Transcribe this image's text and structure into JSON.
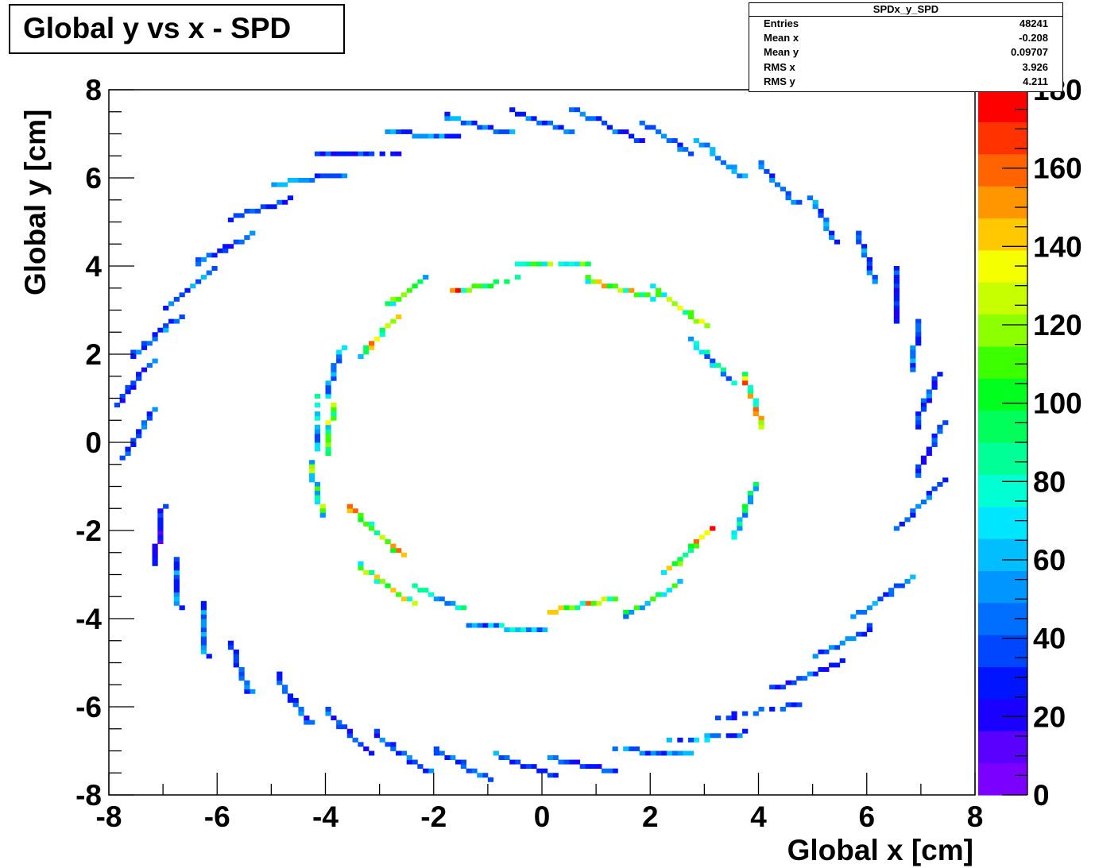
{
  "chart_data": {
    "type": "heatmap",
    "title": "Global y vs x - SPD",
    "xlabel": "Global x [cm]",
    "ylabel": "Global y [cm]",
    "xlim": [
      -8,
      8
    ],
    "ylim": [
      -8,
      8
    ],
    "x_ticks": [
      "-8",
      "-6",
      "-4",
      "-2",
      "0",
      "2",
      "4",
      "6",
      "8"
    ],
    "y_ticks": [
      "-8",
      "-6",
      "-4",
      "-2",
      "0",
      "2",
      "4",
      "6",
      "8"
    ],
    "z_range": [
      0,
      180
    ],
    "z_ticks": [
      "0",
      "20",
      "40",
      "60",
      "80",
      "100",
      "120",
      "140",
      "160",
      "180"
    ],
    "palette": [
      "#7b00ff",
      "#5a00ff",
      "#1a00ff",
      "#0014ff",
      "#0046ff",
      "#006eff",
      "#0096ff",
      "#00beff",
      "#00e6ff",
      "#00ffd2",
      "#00ff96",
      "#00ff5a",
      "#00ff1e",
      "#3cff00",
      "#8cff00",
      "#c8ff00",
      "#f5ff00",
      "#ffc800",
      "#ff9600",
      "#ff6400",
      "#ff3200",
      "#ff0000"
    ],
    "stats": {
      "name": "SPDx_y_SPD",
      "entries": {
        "label": "Entries",
        "value": "48241"
      },
      "mean_x": {
        "label": "Mean x",
        "value": "-0.208"
      },
      "mean_y": {
        "label": "Mean y",
        "value": "0.09707"
      },
      "rms_x": {
        "label": "RMS x",
        "value": "3.926"
      },
      "rms_y": {
        "label": "RMS y",
        "value": "4.211"
      }
    },
    "segments": [
      {
        "layer": "outer",
        "from": [
          -7.75,
          -0.4
        ],
        "to": [
          -7.2,
          0.7
        ],
        "z": 40
      },
      {
        "layer": "outer",
        "from": [
          -7.9,
          0.8
        ],
        "to": [
          -7.2,
          1.85
        ],
        "z": 35
      },
      {
        "layer": "outer",
        "from": [
          -7.6,
          1.95
        ],
        "to": [
          -6.7,
          2.85
        ],
        "z": 40
      },
      {
        "layer": "outer",
        "from": [
          -7.0,
          3.0
        ],
        "to": [
          -6.1,
          3.9
        ],
        "z": 45
      },
      {
        "layer": "outer",
        "from": [
          -6.4,
          4.05
        ],
        "to": [
          -5.4,
          4.7
        ],
        "z": 40
      },
      {
        "layer": "outer",
        "from": [
          -5.8,
          5.05
        ],
        "to": [
          -4.7,
          5.5
        ],
        "z": 35
      },
      {
        "layer": "outer",
        "from": [
          -5.0,
          5.85
        ],
        "to": [
          -3.7,
          6.1
        ],
        "z": 45
      },
      {
        "layer": "outer",
        "from": [
          -4.2,
          6.55
        ],
        "to": [
          -2.7,
          6.6
        ],
        "z": 30
      },
      {
        "layer": "outer",
        "from": [
          -2.9,
          7.05
        ],
        "to": [
          -1.6,
          6.9
        ],
        "z": 45
      },
      {
        "layer": "outer",
        "from": [
          -1.8,
          7.4
        ],
        "to": [
          -0.6,
          7.0
        ],
        "z": 50
      },
      {
        "layer": "outer",
        "from": [
          -0.6,
          7.55
        ],
        "to": [
          0.6,
          7.0
        ],
        "z": 45
      },
      {
        "layer": "outer",
        "from": [
          0.6,
          7.55
        ],
        "to": [
          1.8,
          6.85
        ],
        "z": 40
      },
      {
        "layer": "outer",
        "from": [
          1.9,
          7.25
        ],
        "to": [
          2.8,
          6.5
        ],
        "z": 40
      },
      {
        "layer": "outer",
        "from": [
          2.9,
          6.85
        ],
        "to": [
          3.7,
          6.0
        ],
        "z": 45
      },
      {
        "layer": "outer",
        "from": [
          4.0,
          6.35
        ],
        "to": [
          4.7,
          5.4
        ],
        "z": 40
      },
      {
        "layer": "outer",
        "from": [
          4.95,
          5.6
        ],
        "to": [
          5.45,
          4.5
        ],
        "z": 45
      },
      {
        "layer": "outer",
        "from": [
          5.85,
          4.75
        ],
        "to": [
          6.15,
          3.6
        ],
        "z": 45
      },
      {
        "layer": "outer",
        "from": [
          6.5,
          3.95
        ],
        "to": [
          6.6,
          2.7
        ],
        "z": 30
      },
      {
        "layer": "outer",
        "from": [
          6.95,
          2.7
        ],
        "to": [
          6.85,
          1.6
        ],
        "z": 45
      },
      {
        "layer": "outer",
        "from": [
          7.3,
          1.55
        ],
        "to": [
          6.9,
          0.35
        ],
        "z": 40
      },
      {
        "layer": "outer",
        "from": [
          7.4,
          0.4
        ],
        "to": [
          6.9,
          -0.75
        ],
        "z": 30
      },
      {
        "layer": "outer",
        "from": [
          7.4,
          -0.85
        ],
        "to": [
          6.6,
          -1.95
        ],
        "z": 40
      },
      {
        "layer": "outer",
        "from": [
          6.8,
          -3.1
        ],
        "to": [
          5.8,
          -3.95
        ],
        "z": 45
      },
      {
        "layer": "outer",
        "from": [
          6.1,
          -4.2
        ],
        "to": [
          5.1,
          -4.85
        ],
        "z": 40
      },
      {
        "layer": "outer",
        "from": [
          5.5,
          -5.0
        ],
        "to": [
          4.3,
          -5.6
        ],
        "z": 35
      },
      {
        "layer": "outer",
        "from": [
          4.7,
          -5.95
        ],
        "to": [
          3.3,
          -6.25
        ],
        "z": 40
      },
      {
        "layer": "outer",
        "from": [
          3.8,
          -6.6
        ],
        "to": [
          2.4,
          -6.8
        ],
        "z": 50
      },
      {
        "layer": "outer",
        "from": [
          2.7,
          -7.1
        ],
        "to": [
          1.3,
          -6.95
        ],
        "z": 45
      },
      {
        "layer": "outer",
        "from": [
          1.4,
          -7.5
        ],
        "to": [
          0.2,
          -7.15
        ],
        "z": 40
      },
      {
        "layer": "outer",
        "from": [
          0.3,
          -7.6
        ],
        "to": [
          -0.9,
          -7.05
        ],
        "z": 45
      },
      {
        "layer": "outer",
        "from": [
          -1.0,
          -7.65
        ],
        "to": [
          -2.0,
          -6.95
        ],
        "z": 40
      },
      {
        "layer": "outer",
        "from": [
          -2.1,
          -7.5
        ],
        "to": [
          -3.1,
          -6.6
        ],
        "z": 40
      },
      {
        "layer": "outer",
        "from": [
          -3.2,
          -7.05
        ],
        "to": [
          -4.0,
          -6.1
        ],
        "z": 40
      },
      {
        "layer": "outer",
        "from": [
          -4.3,
          -6.4
        ],
        "to": [
          -4.9,
          -5.3
        ],
        "z": 35
      },
      {
        "layer": "outer",
        "from": [
          -5.4,
          -5.7
        ],
        "to": [
          -5.75,
          -4.55
        ],
        "z": 40
      },
      {
        "layer": "outer",
        "from": [
          -6.2,
          -4.85
        ],
        "to": [
          -6.3,
          -3.65
        ],
        "z": 45
      },
      {
        "layer": "outer",
        "from": [
          -6.7,
          -3.8
        ],
        "to": [
          -6.75,
          -2.7
        ],
        "z": 45
      },
      {
        "layer": "outer",
        "from": [
          -7.15,
          -2.75
        ],
        "to": [
          -7.0,
          -1.5
        ],
        "z": 25
      },
      {
        "layer": "inner",
        "from": [
          -4.2,
          -0.2
        ],
        "to": [
          -4.15,
          1.0
        ],
        "z": 60
      },
      {
        "layer": "inner",
        "from": [
          -4.0,
          1.05
        ],
        "to": [
          -3.7,
          2.1
        ],
        "z": 50
      },
      {
        "layer": "inner",
        "from": [
          -3.35,
          1.95
        ],
        "to": [
          -2.7,
          2.85
        ],
        "z": 110
      },
      {
        "layer": "inner",
        "from": [
          -2.85,
          3.1
        ],
        "to": [
          -2.15,
          3.75
        ],
        "z": 90
      },
      {
        "layer": "inner",
        "from": [
          -1.7,
          3.4
        ],
        "to": [
          -0.4,
          3.75
        ],
        "z": 120
      },
      {
        "layer": "inner",
        "from": [
          -0.5,
          4.05
        ],
        "to": [
          0.8,
          4.1
        ],
        "z": 110
      },
      {
        "layer": "inner",
        "from": [
          0.8,
          3.7
        ],
        "to": [
          2.0,
          3.3
        ],
        "z": 110
      },
      {
        "layer": "inner",
        "from": [
          2.05,
          3.5
        ],
        "to": [
          3.0,
          2.65
        ],
        "z": 100
      },
      {
        "layer": "inner",
        "from": [
          2.7,
          2.4
        ],
        "to": [
          3.5,
          1.4
        ],
        "z": 60
      },
      {
        "layer": "inner",
        "from": [
          3.75,
          1.5
        ],
        "to": [
          4.05,
          0.35
        ],
        "z": 120
      },
      {
        "layer": "inner",
        "from": [
          3.95,
          -0.95
        ],
        "to": [
          3.5,
          -2.2
        ],
        "z": 80
      },
      {
        "layer": "inner",
        "from": [
          3.1,
          -2.0
        ],
        "to": [
          2.3,
          -2.95
        ],
        "z": 130
      },
      {
        "layer": "inner",
        "from": [
          2.55,
          -3.2
        ],
        "to": [
          1.5,
          -3.95
        ],
        "z": 80
      },
      {
        "layer": "inner",
        "from": [
          1.35,
          -3.55
        ],
        "to": [
          0.1,
          -3.85
        ],
        "z": 115
      },
      {
        "layer": "inner",
        "from": [
          0.05,
          -4.25
        ],
        "to": [
          -1.4,
          -4.15
        ],
        "z": 55
      },
      {
        "layer": "inner",
        "from": [
          -1.5,
          -3.75
        ],
        "to": [
          -2.35,
          -3.3
        ],
        "z": 70
      },
      {
        "layer": "inner",
        "from": [
          -2.4,
          -3.65
        ],
        "to": [
          -3.4,
          -2.8
        ],
        "z": 110
      },
      {
        "layer": "inner",
        "from": [
          -2.6,
          -2.55
        ],
        "to": [
          -3.6,
          -1.45
        ],
        "z": 115
      },
      {
        "layer": "inner",
        "from": [
          -4.3,
          -0.45
        ],
        "to": [
          -4.05,
          -1.65
        ],
        "z": 90
      },
      {
        "layer": "inner",
        "from": [
          -4.0,
          -0.25
        ],
        "to": [
          -3.85,
          0.9
        ],
        "z": 110
      }
    ]
  }
}
